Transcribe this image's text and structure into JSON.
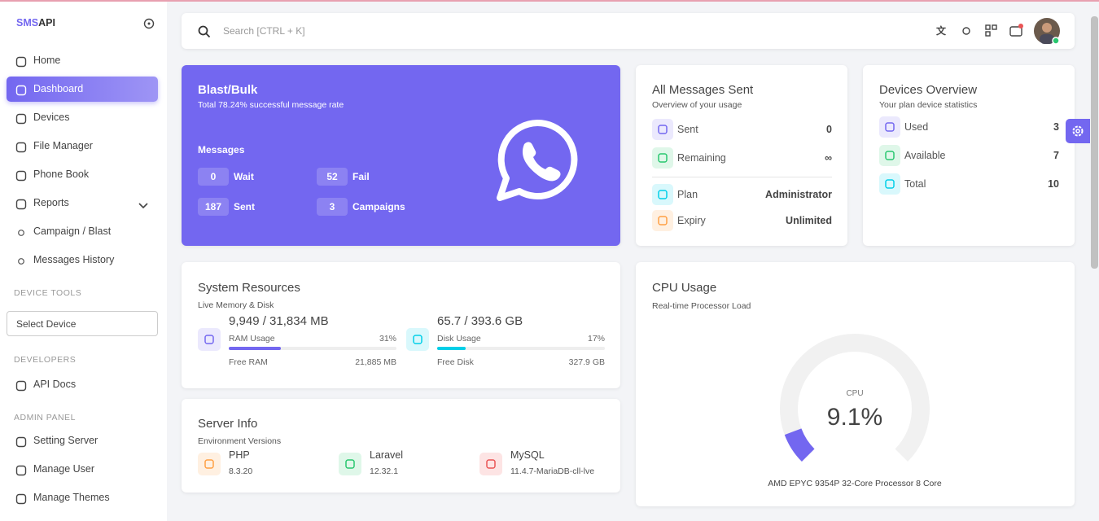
{
  "brand": {
    "prefix": "SMS",
    "suffix": "API"
  },
  "search_placeholder": "Search [CTRL + K]",
  "sidebar": {
    "items": [
      "Home",
      "Dashboard",
      "Devices",
      "File Manager",
      "Phone Book",
      "Reports"
    ],
    "reports_sub": [
      "Campaign / Blast",
      "Messages History"
    ],
    "device_tools": "DEVICE TOOLS",
    "select_device": "Select Device",
    "developers": "DEVELOPERS",
    "api_docs": "API Docs",
    "admin_panel": "ADMIN PANEL",
    "admin_items": [
      "Setting Server",
      "Manage User",
      "Manage Themes"
    ]
  },
  "blast": {
    "title": "Blast/Bulk",
    "subtitle": "Total 78.24% successful message rate",
    "messages_label": "Messages",
    "stats": [
      {
        "value": 0,
        "label": "Wait"
      },
      {
        "value": 52,
        "label": "Fail"
      },
      {
        "value": 187,
        "label": "Sent"
      },
      {
        "value": 3,
        "label": "Campaigns"
      }
    ]
  },
  "all_messages": {
    "title": "All Messages Sent",
    "subtitle": "Overview of your usage",
    "rows": [
      {
        "label": "Sent",
        "value": "0"
      },
      {
        "label": "Remaining",
        "value": "∞"
      },
      {
        "label": "Plan",
        "value": "Administrator"
      },
      {
        "label": "Expiry",
        "value": "Unlimited"
      }
    ]
  },
  "devices_overview": {
    "title": "Devices Overview",
    "subtitle": "Your plan device statistics",
    "rows": [
      {
        "label": "Used",
        "value": 3
      },
      {
        "label": "Available",
        "value": 7
      },
      {
        "label": "Total",
        "value": 10
      }
    ]
  },
  "system_resources": {
    "title": "System Resources",
    "subtitle": "Live Memory & Disk",
    "ram": {
      "amount": "9,949 / 31,834 MB",
      "label": "RAM Usage",
      "percent": {
        "value": 31,
        "label": "31%"
      },
      "free_label": "Free RAM",
      "free": "21,885 MB"
    },
    "disk": {
      "amount": "65.7 / 393.6 GB",
      "label": "Disk Usage",
      "percent": {
        "value": 17,
        "label": "17%"
      },
      "free_label": "Free Disk",
      "free": "327.9 GB"
    }
  },
  "server_info": {
    "title": "Server Info",
    "subtitle": "Environment Versions",
    "items": [
      {
        "name": "PHP",
        "version": "8.3.20"
      },
      {
        "name": "Laravel",
        "version": "12.32.1"
      },
      {
        "name": "MySQL",
        "version": "11.4.7-MariaDB-cll-lve"
      }
    ]
  },
  "cpu": {
    "title": "CPU Usage",
    "subtitle": "Real-time Processor Load",
    "gauge_label": "CPU",
    "usage": {
      "value": 9.1,
      "label": "9.1%"
    },
    "processor": "AMD EPYC 9354P 32-Core Processor 8 Core"
  }
}
